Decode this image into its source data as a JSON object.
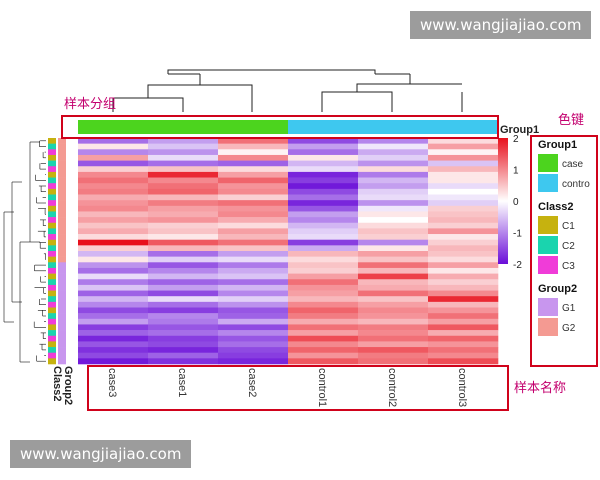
{
  "watermark": {
    "top": "www.wangjiajiao.com",
    "bottom": "www.wangjiajiao.com"
  },
  "annotations": {
    "sample_group": "样本分组",
    "color_key": "色键",
    "sample_names": "样本名称"
  },
  "row_annotation_labels": [
    "Group2",
    "Class2"
  ],
  "colorbar": {
    "ticks": [
      "2",
      "1",
      "0",
      "-1",
      "-2"
    ]
  },
  "legend": [
    {
      "title": "Group1",
      "items": [
        {
          "label": "case",
          "color": "#4cd41e"
        },
        {
          "label": "contro",
          "color": "#3ec8ef"
        }
      ]
    },
    {
      "title": "Class2",
      "items": [
        {
          "label": "C1",
          "color": "#c6b20f"
        },
        {
          "label": "C2",
          "color": "#1ad4ae"
        },
        {
          "label": "C3",
          "color": "#f03cd8"
        }
      ]
    },
    {
      "title": "Group2",
      "items": [
        {
          "label": "G1",
          "color": "#c896ee"
        },
        {
          "label": "G2",
          "color": "#f49a92"
        }
      ]
    }
  ],
  "colors": {
    "low": "#6a0dd8",
    "mid": "#ffffff",
    "high": "#e8101c",
    "annotation_box": "#d0021b",
    "annotation_text": "#c3006e"
  },
  "chart_data": {
    "type": "heatmap",
    "columns": [
      "case3",
      "case1",
      "case2",
      "control1",
      "control2",
      "control3"
    ],
    "column_group": {
      "title": "Group1",
      "values": [
        "case",
        "case",
        "case",
        "control",
        "control",
        "control"
      ]
    },
    "color_scale": {
      "min": -2,
      "max": 2
    },
    "row_count": 40,
    "values": [
      [
        -1.2,
        -0.8,
        1.2,
        -1.5,
        -1.0,
        0.3
      ],
      [
        0.2,
        -0.5,
        0.6,
        -0.8,
        -0.2,
        0.8
      ],
      [
        -1.0,
        -0.9,
        0.1,
        -1.2,
        -0.7,
        0.1
      ],
      [
        0.8,
        -0.3,
        1.0,
        0.2,
        -0.4,
        0.9
      ],
      [
        -1.4,
        -1.2,
        -1.3,
        -0.6,
        -0.9,
        -0.5
      ],
      [
        0.4,
        0.5,
        0.3,
        -0.3,
        0.3,
        0.6
      ],
      [
        1.0,
        1.8,
        0.8,
        -1.8,
        -1.1,
        0.2
      ],
      [
        1.2,
        1.0,
        1.3,
        -1.6,
        -0.6,
        0.2
      ],
      [
        1.0,
        1.2,
        0.9,
        -1.9,
        -0.8,
        -0.3
      ],
      [
        1.1,
        1.3,
        1.0,
        -1.5,
        -0.4,
        0.0
      ],
      [
        0.7,
        0.6,
        0.4,
        -1.2,
        -0.3,
        -0.2
      ],
      [
        0.9,
        1.1,
        1.2,
        -1.8,
        -0.9,
        -0.4
      ],
      [
        1.0,
        0.8,
        0.9,
        -1.4,
        -0.2,
        0.4
      ],
      [
        0.6,
        0.7,
        1.0,
        -0.8,
        0.2,
        0.5
      ],
      [
        0.8,
        0.9,
        0.7,
        -1.0,
        0.0,
        0.6
      ],
      [
        0.5,
        0.4,
        0.3,
        -0.6,
        0.3,
        0.4
      ],
      [
        0.7,
        0.5,
        0.8,
        -0.4,
        0.5,
        0.9
      ],
      [
        0.3,
        0.2,
        0.6,
        -0.3,
        0.4,
        0.2
      ],
      [
        2.0,
        1.4,
        1.2,
        -1.6,
        -1.0,
        0.4
      ],
      [
        0.4,
        0.6,
        0.5,
        -0.7,
        0.2,
        0.6
      ],
      [
        -0.6,
        -1.2,
        -0.8,
        0.6,
        0.8,
        0.5
      ],
      [
        0.2,
        -0.4,
        -0.3,
        0.3,
        0.5,
        0.3
      ],
      [
        -0.9,
        -1.4,
        -1.1,
        0.5,
        1.2,
        0.8
      ],
      [
        -1.2,
        -1.0,
        -0.7,
        0.4,
        0.6,
        0.2
      ],
      [
        -0.3,
        -0.6,
        -0.5,
        0.8,
        1.6,
        0.7
      ],
      [
        -1.1,
        -1.3,
        -1.2,
        1.2,
        0.6,
        0.4
      ],
      [
        -0.5,
        -0.8,
        -0.6,
        0.9,
        0.7,
        0.6
      ],
      [
        -1.3,
        -1.5,
        -1.0,
        0.8,
        1.2,
        1.0
      ],
      [
        -0.6,
        -0.3,
        -0.4,
        0.6,
        0.5,
        1.8
      ],
      [
        -1.0,
        -1.2,
        -0.9,
        1.0,
        0.8,
        0.6
      ],
      [
        -1.5,
        -1.6,
        -1.4,
        1.3,
        1.0,
        0.9
      ],
      [
        -1.2,
        -1.0,
        -1.3,
        1.1,
        0.9,
        1.2
      ],
      [
        -0.8,
        -1.1,
        -0.7,
        0.7,
        0.6,
        0.8
      ],
      [
        -1.6,
        -1.4,
        -1.5,
        1.2,
        1.1,
        1.4
      ],
      [
        -1.3,
        -1.2,
        -1.0,
        0.8,
        1.0,
        0.7
      ],
      [
        -1.8,
        -1.6,
        -1.4,
        1.5,
        1.2,
        1.3
      ],
      [
        -1.4,
        -1.5,
        -1.2,
        1.0,
        0.8,
        0.9
      ],
      [
        -1.7,
        -1.8,
        -1.5,
        1.3,
        1.4,
        1.2
      ],
      [
        -1.5,
        -1.3,
        -1.6,
        0.9,
        1.1,
        1.0
      ],
      [
        -1.9,
        -1.7,
        -1.8,
        1.4,
        1.2,
        1.5
      ]
    ]
  }
}
